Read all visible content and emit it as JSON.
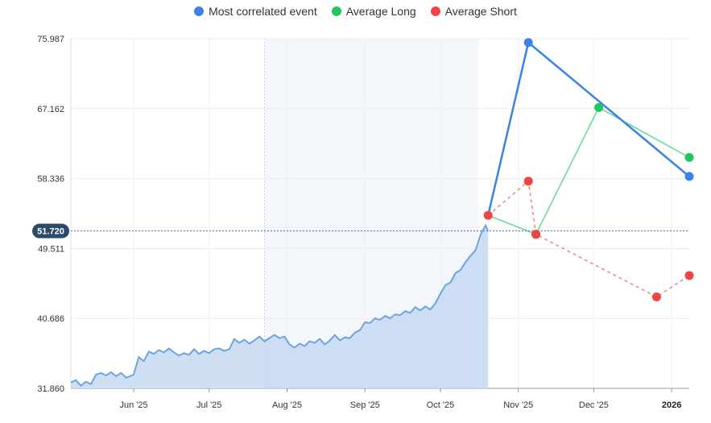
{
  "legend": [
    {
      "label": "Most correlated event",
      "color": "#3b82e6"
    },
    {
      "label": "Average Long",
      "color": "#22c55e"
    },
    {
      "label": "Average Short",
      "color": "#ef4444"
    }
  ],
  "chart_data": {
    "type": "line",
    "y_ticks": [
      "75.987",
      "67.162",
      "58.336",
      "49.511",
      "40.686",
      "31.860"
    ],
    "ylim": [
      31.86,
      75.987
    ],
    "x_ticks": [
      "Jun '25",
      "Jul '25",
      "Aug '25",
      "Sep '25",
      "Oct '25",
      "Nov '25",
      "Dec '25",
      "2026"
    ],
    "x_tick_dates": [
      "2025-06-01",
      "2025-07-01",
      "2025-08-01",
      "2025-09-01",
      "2025-10-01",
      "2025-11-01",
      "2025-12-01",
      "2026-01-01"
    ],
    "xlim": [
      "2025-05-07",
      "2026-01-08"
    ],
    "grid": true,
    "legend_position": "top",
    "current_value": "51.720",
    "highlight_band": [
      "2025-07-23",
      "2025-10-16"
    ],
    "price_series": [
      [
        "2025-05-07",
        32.6
      ],
      [
        "2025-05-09",
        32.9
      ],
      [
        "2025-05-11",
        32.2
      ],
      [
        "2025-05-13",
        32.7
      ],
      [
        "2025-05-15",
        32.4
      ],
      [
        "2025-05-17",
        33.6
      ],
      [
        "2025-05-19",
        33.8
      ],
      [
        "2025-05-21",
        33.5
      ],
      [
        "2025-05-23",
        33.9
      ],
      [
        "2025-05-25",
        33.4
      ],
      [
        "2025-05-27",
        33.8
      ],
      [
        "2025-05-29",
        33.2
      ],
      [
        "2025-06-01",
        33.6
      ],
      [
        "2025-06-03",
        35.8
      ],
      [
        "2025-06-05",
        35.3
      ],
      [
        "2025-06-07",
        36.5
      ],
      [
        "2025-06-09",
        36.2
      ],
      [
        "2025-06-11",
        36.7
      ],
      [
        "2025-06-13",
        36.4
      ],
      [
        "2025-06-15",
        36.9
      ],
      [
        "2025-06-17",
        36.4
      ],
      [
        "2025-06-19",
        36.0
      ],
      [
        "2025-06-21",
        36.3
      ],
      [
        "2025-06-23",
        36.1
      ],
      [
        "2025-06-25",
        36.8
      ],
      [
        "2025-06-27",
        36.2
      ],
      [
        "2025-06-29",
        36.6
      ],
      [
        "2025-07-01",
        36.3
      ],
      [
        "2025-07-03",
        36.8
      ],
      [
        "2025-07-05",
        36.9
      ],
      [
        "2025-07-07",
        36.6
      ],
      [
        "2025-07-09",
        36.8
      ],
      [
        "2025-07-11",
        38.1
      ],
      [
        "2025-07-13",
        37.6
      ],
      [
        "2025-07-15",
        38.0
      ],
      [
        "2025-07-17",
        37.5
      ],
      [
        "2025-07-19",
        37.9
      ],
      [
        "2025-07-21",
        38.4
      ],
      [
        "2025-07-23",
        37.8
      ],
      [
        "2025-07-25",
        38.2
      ],
      [
        "2025-07-27",
        38.6
      ],
      [
        "2025-07-29",
        38.2
      ],
      [
        "2025-07-31",
        38.4
      ],
      [
        "2025-08-02",
        37.4
      ],
      [
        "2025-08-04",
        37.0
      ],
      [
        "2025-08-06",
        37.5
      ],
      [
        "2025-08-08",
        37.2
      ],
      [
        "2025-08-10",
        37.8
      ],
      [
        "2025-08-12",
        37.6
      ],
      [
        "2025-08-14",
        38.1
      ],
      [
        "2025-08-16",
        37.4
      ],
      [
        "2025-08-18",
        37.9
      ],
      [
        "2025-08-20",
        38.6
      ],
      [
        "2025-08-22",
        37.9
      ],
      [
        "2025-08-24",
        38.3
      ],
      [
        "2025-08-26",
        38.2
      ],
      [
        "2025-08-28",
        38.9
      ],
      [
        "2025-08-30",
        39.2
      ],
      [
        "2025-09-01",
        40.2
      ],
      [
        "2025-09-03",
        40.1
      ],
      [
        "2025-09-05",
        40.7
      ],
      [
        "2025-09-07",
        40.5
      ],
      [
        "2025-09-09",
        41.0
      ],
      [
        "2025-09-11",
        40.7
      ],
      [
        "2025-09-13",
        41.2
      ],
      [
        "2025-09-15",
        41.1
      ],
      [
        "2025-09-17",
        41.6
      ],
      [
        "2025-09-19",
        41.4
      ],
      [
        "2025-09-21",
        42.1
      ],
      [
        "2025-09-23",
        41.7
      ],
      [
        "2025-09-25",
        42.2
      ],
      [
        "2025-09-27",
        41.8
      ],
      [
        "2025-09-29",
        42.6
      ],
      [
        "2025-10-01",
        43.8
      ],
      [
        "2025-10-03",
        44.9
      ],
      [
        "2025-10-05",
        45.2
      ],
      [
        "2025-10-07",
        46.4
      ],
      [
        "2025-10-09",
        46.8
      ],
      [
        "2025-10-11",
        47.8
      ],
      [
        "2025-10-13",
        48.6
      ],
      [
        "2025-10-15",
        49.3
      ],
      [
        "2025-10-17",
        51.3
      ],
      [
        "2025-10-19",
        52.4
      ],
      [
        "2025-10-20",
        51.7
      ]
    ],
    "series": [
      {
        "name": "Most correlated event",
        "color": "#3b82e6",
        "dashed": false,
        "points": [
          [
            "2025-10-20",
            53.7
          ],
          [
            "2025-11-05",
            75.5
          ],
          [
            "2026-01-08",
            58.6
          ]
        ]
      },
      {
        "name": "Average Long",
        "color": "#22c55e",
        "dashed": false,
        "points": [
          [
            "2025-10-20",
            53.7
          ],
          [
            "2025-11-08",
            51.3
          ],
          [
            "2025-12-03",
            67.3
          ],
          [
            "2026-01-08",
            61.0
          ]
        ]
      },
      {
        "name": "Average Short",
        "color": "#ef4444",
        "dashed": true,
        "points": [
          [
            "2025-10-20",
            53.7
          ],
          [
            "2025-11-05",
            58.0
          ],
          [
            "2025-11-08",
            51.3
          ],
          [
            "2025-12-26",
            43.4
          ],
          [
            "2026-01-08",
            46.1
          ]
        ]
      }
    ]
  }
}
